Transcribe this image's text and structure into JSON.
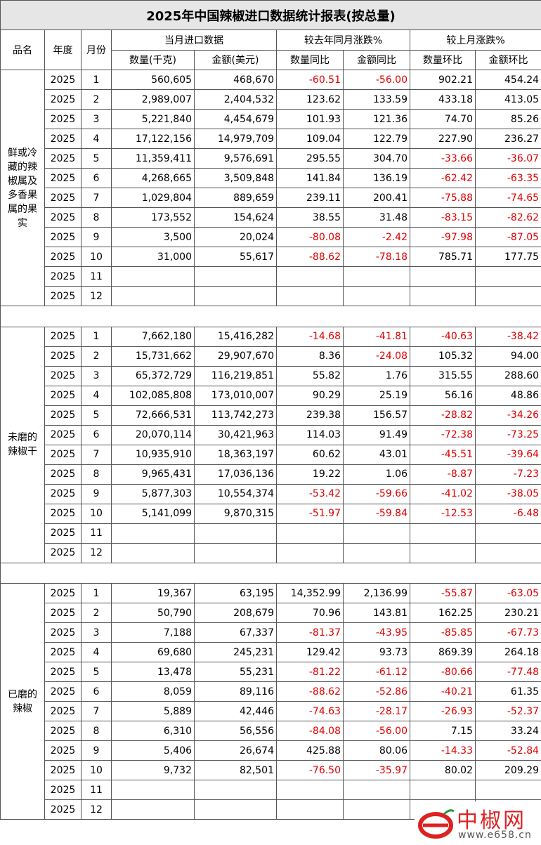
{
  "header": {
    "title": "2025年中国辣椒进口数据统计报表(按总量)",
    "columns": [
      "品名",
      "年度",
      "月份"
    ],
    "groups": [
      "当月进口数据",
      "较去年同月涨跌%",
      "较上月涨跌%"
    ],
    "subcolumns": [
      "数量(千克)",
      "金额(美元)",
      "数量同比",
      "金额同比",
      "数量环比",
      "金额环比"
    ]
  },
  "sections": [
    {
      "name": "鲜或冷藏的辣椒属及多香果属的果实",
      "rows": [
        [
          "2025",
          "1",
          "560,605",
          "468,670",
          "-60.51",
          "-56.00",
          "902.21",
          "454.24"
        ],
        [
          "2025",
          "2",
          "2,989,007",
          "2,404,532",
          "123.62",
          "133.59",
          "433.18",
          "413.05"
        ],
        [
          "2025",
          "3",
          "5,221,840",
          "4,454,679",
          "101.93",
          "121.36",
          "74.70",
          "85.26"
        ],
        [
          "2025",
          "4",
          "17,122,156",
          "14,979,709",
          "109.04",
          "122.79",
          "227.90",
          "236.27"
        ],
        [
          "2025",
          "5",
          "11,359,411",
          "9,576,691",
          "295.55",
          "304.70",
          "-33.66",
          "-36.07"
        ],
        [
          "2025",
          "6",
          "4,268,665",
          "3,509,848",
          "141.84",
          "136.19",
          "-62.42",
          "-63.35"
        ],
        [
          "2025",
          "7",
          "1,029,804",
          "889,659",
          "239.11",
          "200.41",
          "-75.88",
          "-74.65"
        ],
        [
          "2025",
          "8",
          "173,552",
          "154,624",
          "38.55",
          "31.48",
          "-83.15",
          "-82.62"
        ],
        [
          "2025",
          "9",
          "3,500",
          "20,024",
          "-80.08",
          "-2.42",
          "-97.98",
          "-87.05"
        ],
        [
          "2025",
          "10",
          "31,000",
          "55,617",
          "-88.62",
          "-78.18",
          "785.71",
          "177.75"
        ],
        [
          "2025",
          "11"
        ],
        [
          "2025",
          "12"
        ]
      ]
    },
    {
      "name": "未磨的辣椒干",
      "rows": [
        [
          "2025",
          "1",
          "7,662,180",
          "15,416,282",
          "-14.68",
          "-41.81",
          "-40.63",
          "-38.42"
        ],
        [
          "2025",
          "2",
          "15,731,662",
          "29,907,670",
          "8.36",
          "-24.08",
          "105.32",
          "94.00"
        ],
        [
          "2025",
          "3",
          "65,372,729",
          "116,219,851",
          "55.82",
          "1.76",
          "315.55",
          "288.60"
        ],
        [
          "2025",
          "4",
          "102,085,808",
          "173,010,007",
          "90.29",
          "25.19",
          "56.16",
          "48.86"
        ],
        [
          "2025",
          "5",
          "72,666,531",
          "113,742,273",
          "239.38",
          "156.57",
          "-28.82",
          "-34.26"
        ],
        [
          "2025",
          "6",
          "20,070,114",
          "30,421,963",
          "114.03",
          "91.49",
          "-72.38",
          "-73.25"
        ],
        [
          "2025",
          "7",
          "10,935,910",
          "18,363,197",
          "60.62",
          "43.01",
          "-45.51",
          "-39.64"
        ],
        [
          "2025",
          "8",
          "9,965,431",
          "17,036,136",
          "19.22",
          "1.06",
          "-8.87",
          "-7.23"
        ],
        [
          "2025",
          "9",
          "5,877,303",
          "10,554,374",
          "-53.42",
          "-59.66",
          "-41.02",
          "-38.05"
        ],
        [
          "2025",
          "10",
          "5,141,099",
          "9,870,315",
          "-51.97",
          "-59.84",
          "-12.53",
          "-6.48"
        ],
        [
          "2025",
          "11"
        ],
        [
          "2025",
          "12"
        ]
      ]
    },
    {
      "name": "已磨的辣椒",
      "rows": [
        [
          "2025",
          "1",
          "19,367",
          "63,195",
          "14,352.99",
          "2,136.99",
          "-55.87",
          "-63.05"
        ],
        [
          "2025",
          "2",
          "50,790",
          "208,679",
          "70.96",
          "143.81",
          "162.25",
          "230.21"
        ],
        [
          "2025",
          "3",
          "7,188",
          "67,337",
          "-81.37",
          "-43.95",
          "-85.85",
          "-67.73"
        ],
        [
          "2025",
          "4",
          "69,680",
          "245,231",
          "129.42",
          "93.73",
          "869.39",
          "264.18"
        ],
        [
          "2025",
          "5",
          "13,478",
          "55,231",
          "-81.22",
          "-61.12",
          "-80.66",
          "-77.48"
        ],
        [
          "2025",
          "6",
          "8,059",
          "89,116",
          "-88.62",
          "-52.86",
          "-40.21",
          "61.35"
        ],
        [
          "2025",
          "7",
          "5,889",
          "42,446",
          "-74.63",
          "-28.17",
          "-26.93",
          "-52.37"
        ],
        [
          "2025",
          "8",
          "6,310",
          "56,556",
          "-84.08",
          "-56.00",
          "7.15",
          "33.24"
        ],
        [
          "2025",
          "9",
          "5,406",
          "26,674",
          "425.88",
          "80.06",
          "-14.33",
          "-52.84"
        ],
        [
          "2025",
          "10",
          "9,732",
          "82,501",
          "-76.50",
          "-35.97",
          "80.02",
          "209.29"
        ],
        [
          "2025",
          "11"
        ],
        [
          "2025",
          "12"
        ]
      ]
    }
  ],
  "watermark": {
    "brand": "中椒网",
    "url": "www.e658.cn"
  }
}
